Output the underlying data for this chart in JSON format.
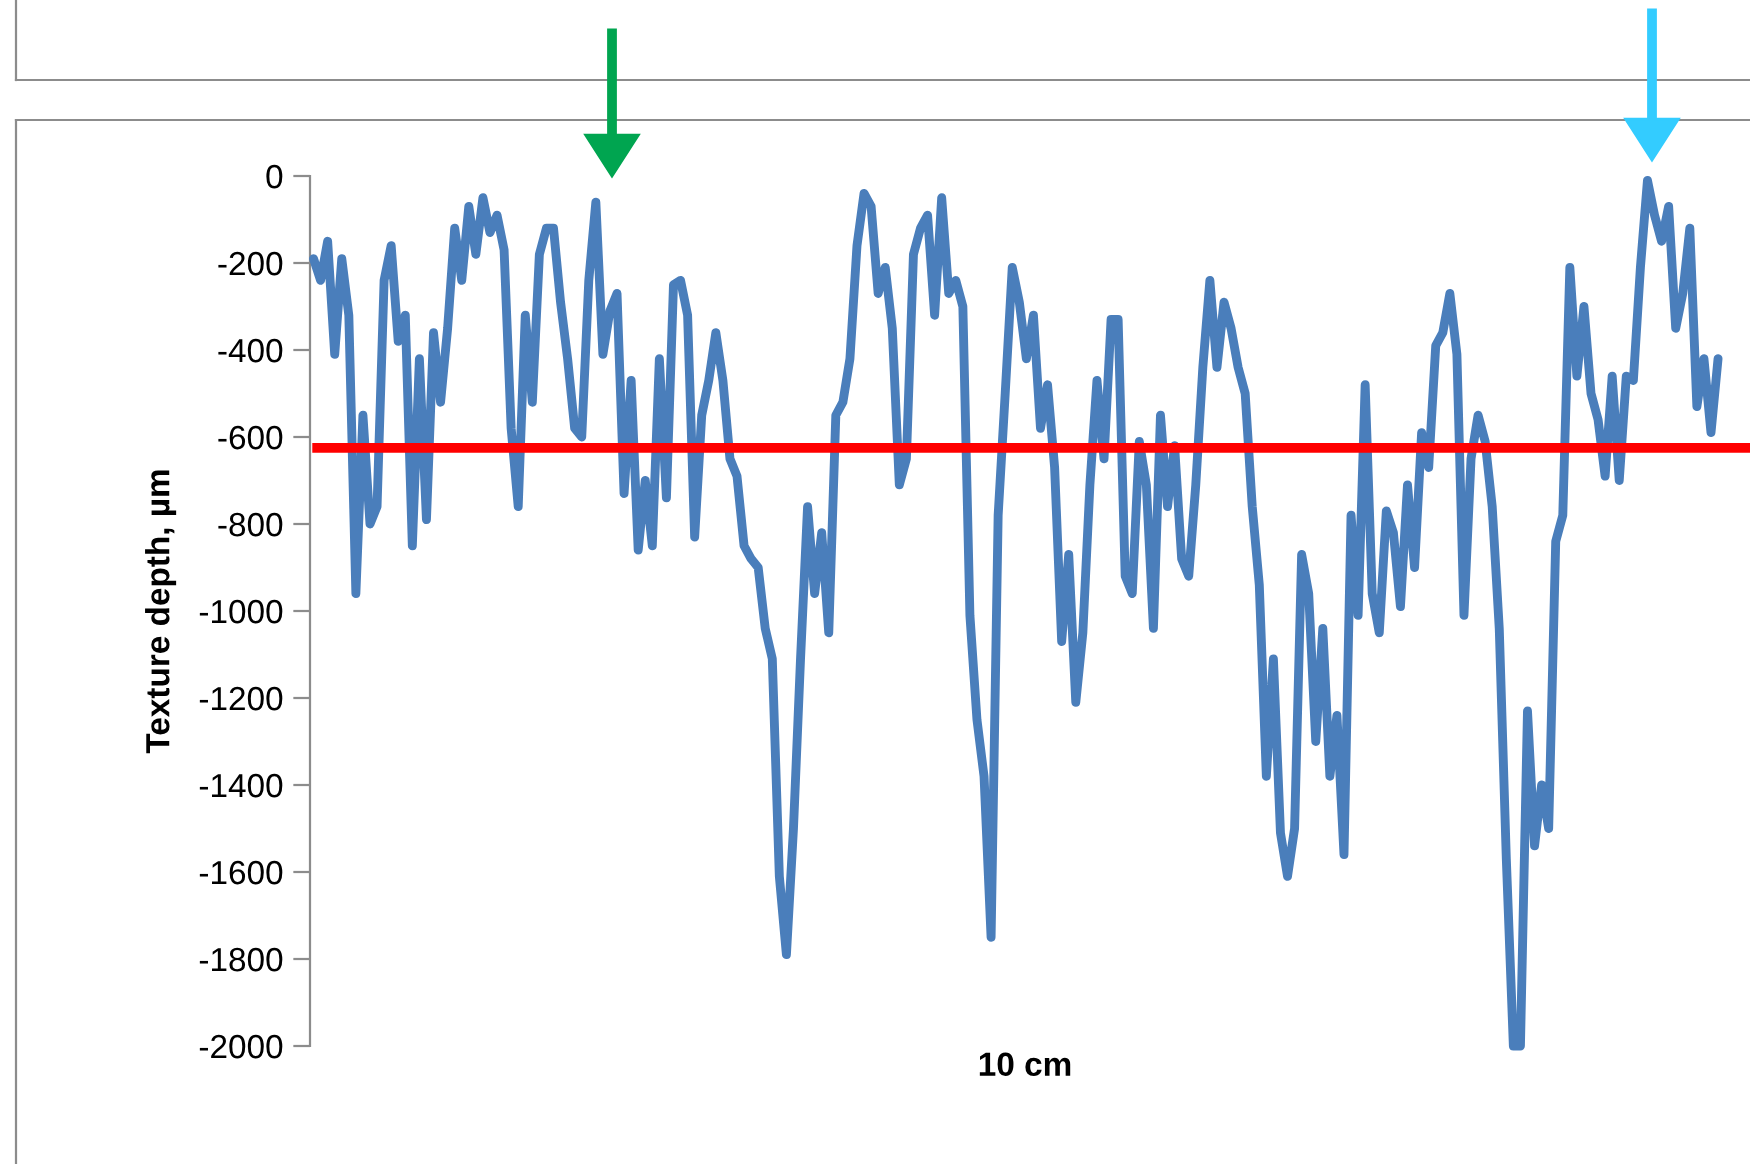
{
  "chart_data": {
    "type": "line",
    "xlabel": "10 cm",
    "ylabel": "Texture depth, µm",
    "ylim": [
      -2000,
      0
    ],
    "yticks": [
      -2000,
      -1800,
      -1600,
      -1400,
      -1200,
      -1000,
      -800,
      -600,
      -400,
      -200,
      0
    ],
    "grid": false,
    "legend": false,
    "tick_labels": "y",
    "categories": [
      null,
      null,
      null,
      null,
      null,
      null,
      null,
      null,
      null,
      null,
      null,
      null,
      null,
      null,
      null,
      null,
      null,
      null,
      null,
      null,
      null,
      null,
      null,
      null,
      null,
      null,
      null,
      null,
      null,
      null,
      null,
      null,
      null,
      null,
      null,
      null,
      null,
      null,
      null,
      null,
      null,
      null,
      null,
      null,
      null,
      null,
      null,
      null,
      null,
      null,
      null,
      null,
      null,
      null,
      null,
      null,
      null,
      null,
      null,
      null,
      null,
      null,
      null,
      null,
      null,
      null,
      null,
      null,
      null,
      null,
      null,
      null,
      null,
      null,
      null,
      null,
      null,
      null,
      null,
      null,
      null,
      null,
      null,
      null,
      null,
      null,
      null,
      null,
      null,
      null,
      null,
      null,
      null,
      null,
      null,
      null,
      null,
      null,
      null,
      null,
      null,
      null,
      null,
      null,
      null,
      null,
      null,
      null,
      null,
      null,
      null,
      null,
      null,
      null,
      null,
      null,
      null,
      null,
      null,
      null,
      null,
      null,
      null,
      null,
      null,
      null,
      null,
      null,
      null,
      null,
      null,
      null,
      null,
      null,
      null,
      null,
      null,
      null,
      null,
      null,
      null,
      null,
      null,
      null,
      null,
      null,
      null,
      null,
      null,
      null,
      null,
      null,
      null,
      null,
      null,
      null,
      null,
      null,
      null,
      null,
      null,
      null,
      null,
      null,
      null,
      null,
      null,
      null,
      null,
      null,
      null,
      null,
      null,
      null,
      null,
      null,
      null,
      null,
      null,
      null,
      null,
      null,
      null,
      null,
      null,
      null,
      null,
      null,
      null,
      null,
      null,
      null,
      null,
      null,
      null,
      null,
      null,
      null,
      null,
      null
    ],
    "series": [
      {
        "color": "#4a7ebb",
        "values": [
          -190,
          -240,
          -150,
          -410,
          -190,
          -320,
          -960,
          -550,
          -800,
          -760,
          -240,
          -160,
          -380,
          -320,
          -850,
          -420,
          -790,
          -360,
          -520,
          -350,
          -120,
          -240,
          -70,
          -180,
          -50,
          -130,
          -90,
          -170,
          -580,
          -760,
          -320,
          -520,
          -180,
          -120,
          -120,
          -290,
          -420,
          -580,
          -600,
          -240,
          -60,
          -410,
          -310,
          -270,
          -730,
          -470,
          -860,
          -700,
          -850,
          -420,
          -740,
          -250,
          -240,
          -320,
          -830,
          -550,
          -470,
          -360,
          -470,
          -650,
          -690,
          -850,
          -880,
          -900,
          -1040,
          -1110,
          -1610,
          -1790,
          -1500,
          -1110,
          -760,
          -960,
          -820,
          -1050,
          -550,
          -520,
          -420,
          -160,
          -40,
          -70,
          -270,
          -210,
          -350,
          -710,
          -650,
          -180,
          -120,
          -90,
          -320,
          -50,
          -270,
          -240,
          -300,
          -1010,
          -1250,
          -1380,
          -1750,
          -780,
          -500,
          -210,
          -290,
          -420,
          -320,
          -580,
          -480,
          -670,
          -1070,
          -870,
          -1210,
          -1050,
          -710,
          -470,
          -650,
          -330,
          -330,
          -920,
          -960,
          -610,
          -710,
          -1040,
          -550,
          -760,
          -620,
          -880,
          -920,
          -710,
          -440,
          -240,
          -440,
          -290,
          -350,
          -440,
          -500,
          -760,
          -940,
          -1380,
          -1110,
          -1510,
          -1610,
          -1500,
          -870,
          -960,
          -1300,
          -1040,
          -1380,
          -1240,
          -1560,
          -780,
          -1010,
          -480,
          -960,
          -1050,
          -770,
          -820,
          -990,
          -710,
          -900,
          -590,
          -670,
          -390,
          -360,
          -270,
          -410,
          -1010,
          -650,
          -550,
          -610,
          -760,
          -1040,
          -1570,
          -2000,
          -2000,
          -1230,
          -1540,
          -1400,
          -1500,
          -840,
          -780,
          -210,
          -460,
          -300,
          -500,
          -560,
          -690,
          -460,
          -700,
          -460,
          -470,
          -210,
          -10,
          -90,
          -150,
          -70,
          -350,
          -270,
          -120,
          -530,
          -420,
          -590,
          -420
        ]
      }
    ],
    "ref_lines": [
      {
        "axis": "y",
        "value": -625,
        "color": "#ff0000"
      }
    ]
  }
}
